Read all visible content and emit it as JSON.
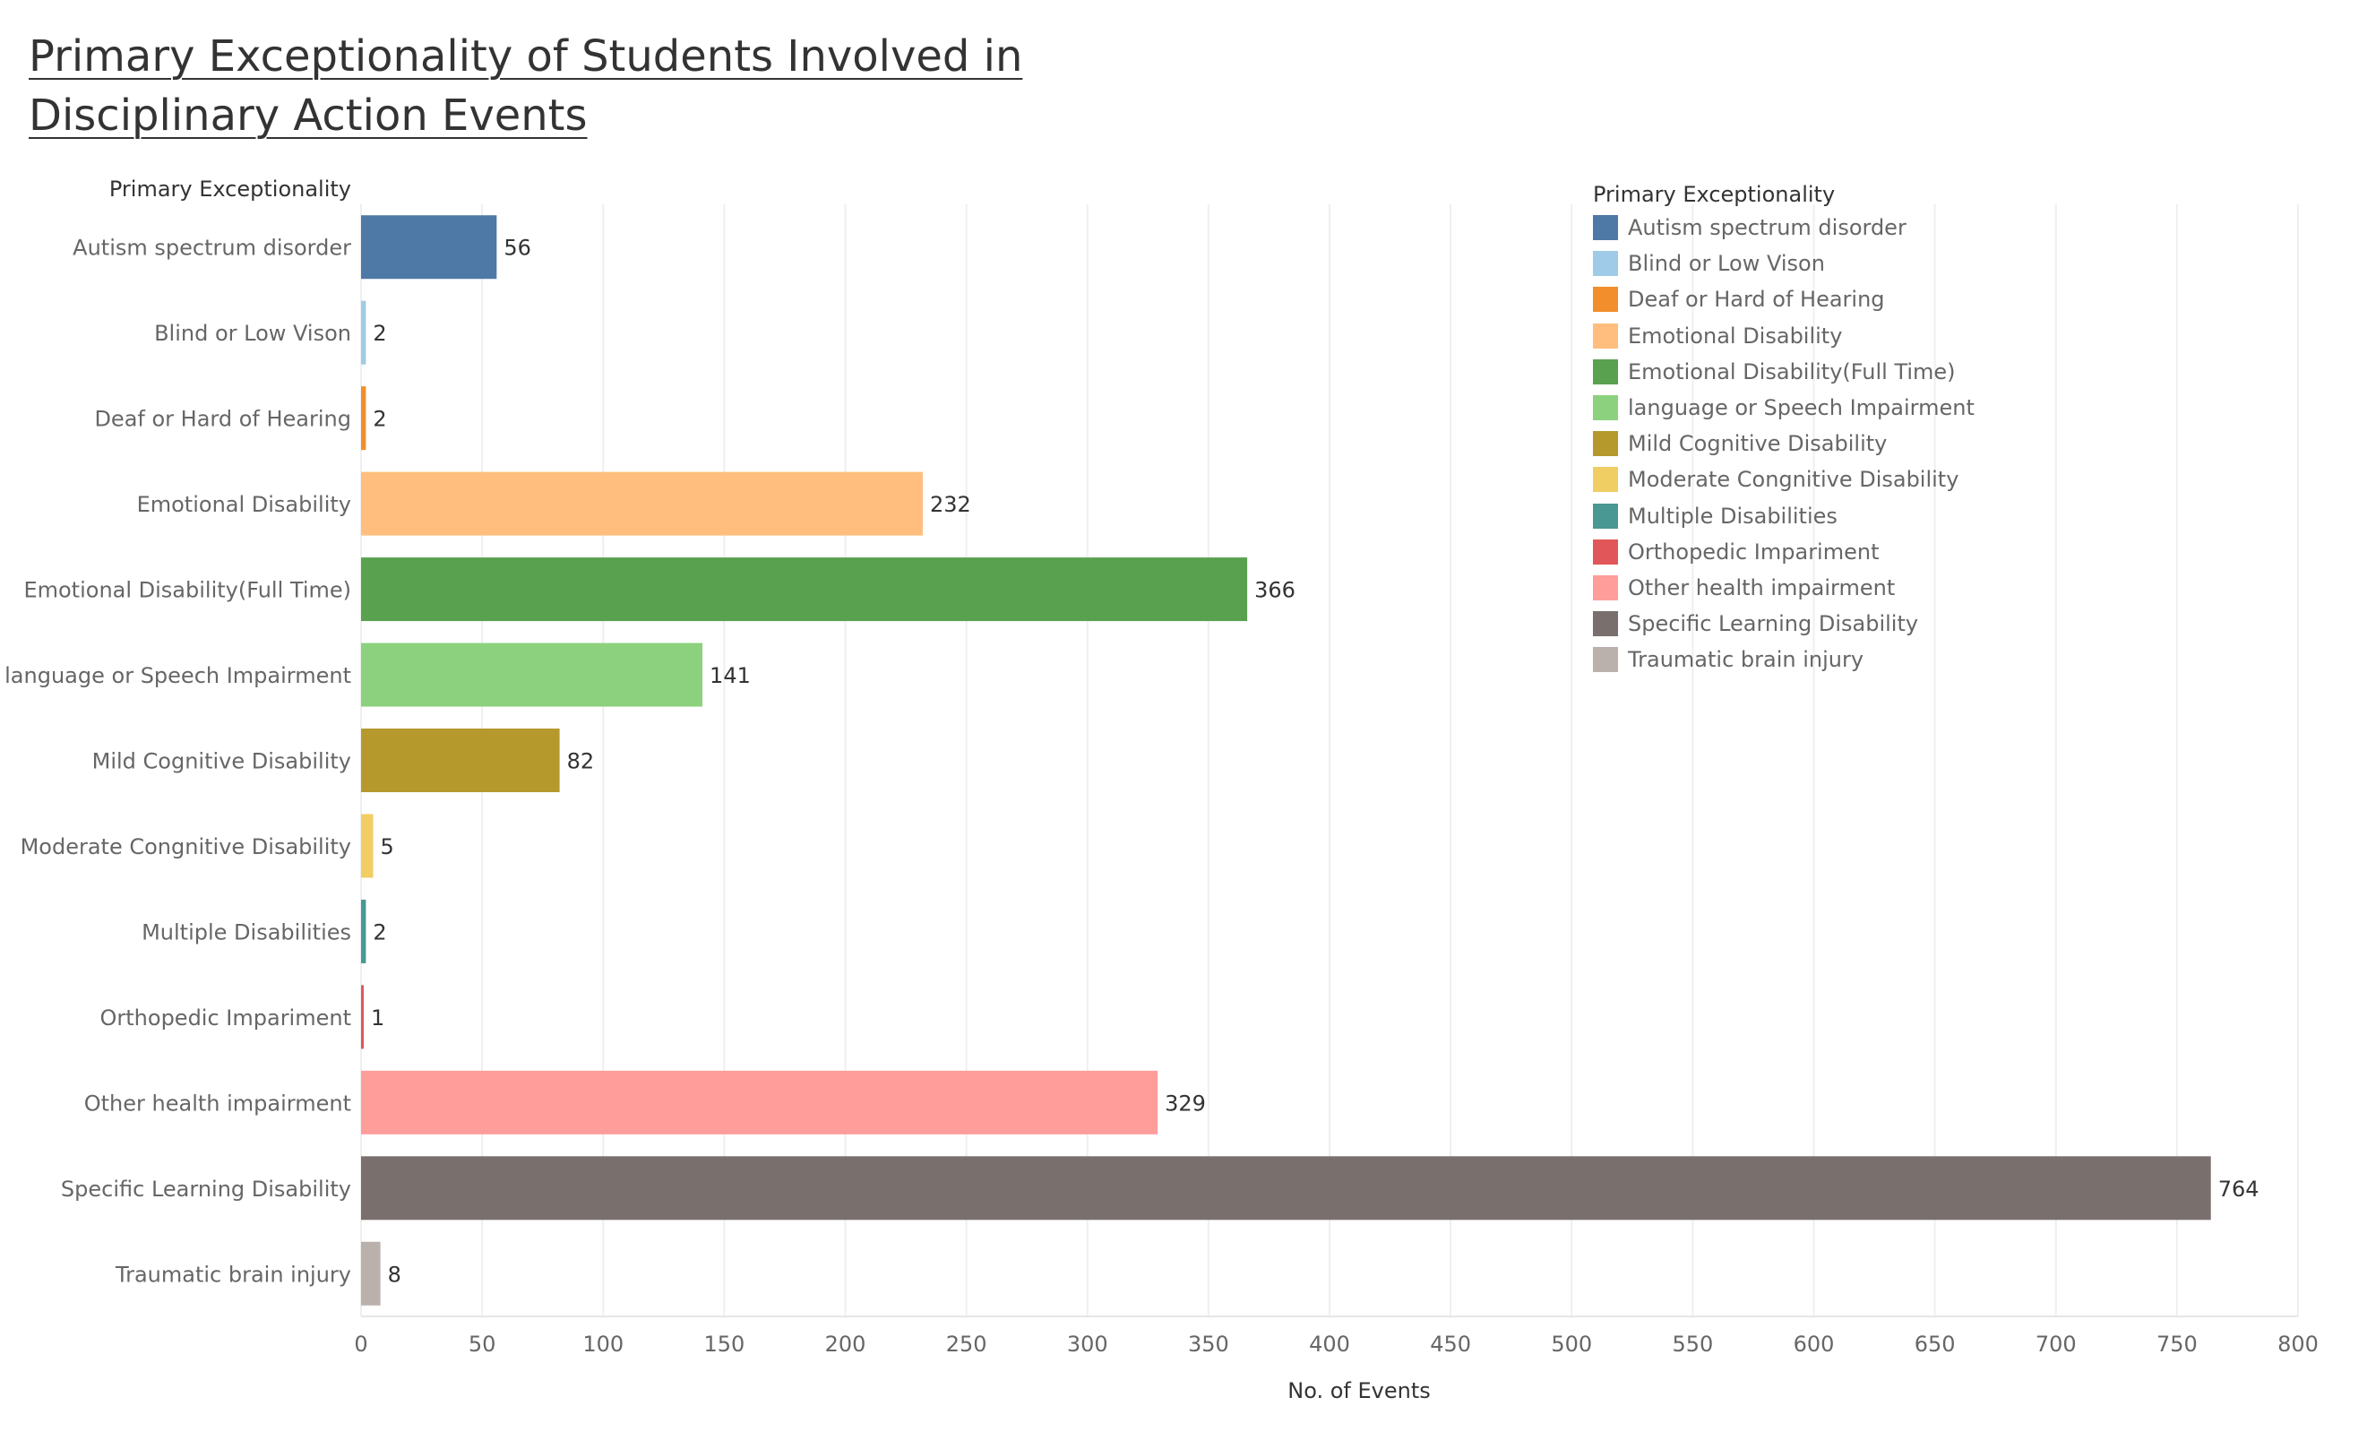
{
  "title_lines": [
    "Primary Exceptionality of Students Involved in",
    "Disciplinary Action Events"
  ],
  "chart_data": {
    "type": "bar",
    "orientation": "horizontal",
    "title": "Primary Exceptionality of Students Involved in Disciplinary Action Events",
    "ylabel": "Primary Exceptionality",
    "xlabel": "No. of Events",
    "xlim": [
      0,
      800
    ],
    "x_ticks": [
      0,
      50,
      100,
      150,
      200,
      250,
      300,
      350,
      400,
      450,
      500,
      550,
      600,
      650,
      700,
      750,
      800
    ],
    "grid": "vertical",
    "data_labels": true,
    "legend_title": "Primary Exceptionality",
    "legend_position": "top-right",
    "categories": [
      "Autism spectrum disorder",
      "Blind or Low Vison",
      "Deaf or Hard of Hearing",
      "Emotional Disability",
      "Emotional Disability(Full Time)",
      "language or Speech Impairment",
      "Mild Cognitive Disability",
      "Moderate Congnitive Disability",
      "Multiple Disabilities",
      "Orthopedic Impariment",
      "Other health impairment",
      "Specific Learning Disability",
      "Traumatic brain injury"
    ],
    "values": [
      56,
      2,
      2,
      232,
      366,
      141,
      82,
      5,
      2,
      1,
      329,
      764,
      8
    ],
    "colors": [
      "#4e79a7",
      "#a0cbe8",
      "#f28e2b",
      "#ffbe7d",
      "#59a14f",
      "#8cd17d",
      "#b6992d",
      "#f1ce63",
      "#499894",
      "#e15759",
      "#ff9d9a",
      "#79706e",
      "#bab0ac"
    ]
  }
}
